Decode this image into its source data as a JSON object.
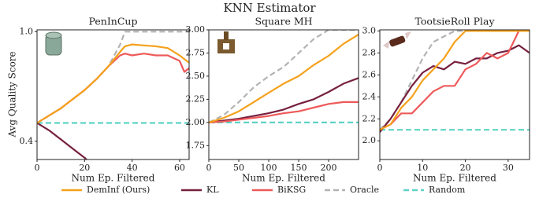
{
  "title": "KNN Estimator",
  "y_label": "Avg Quality Score",
  "chart_data": [
    {
      "type": "line",
      "title": "PenInCup",
      "x_label": "Num Ep. Filtered",
      "x": [
        0,
        5,
        10,
        15,
        20,
        25,
        30,
        35,
        37,
        40,
        45,
        50,
        55,
        60,
        62,
        64
      ],
      "xlim": [
        0,
        64
      ],
      "xticks": [
        0,
        20,
        40,
        60
      ],
      "ylim": [
        0.3,
        1.01
      ],
      "yticks": [
        0.4,
        {
          "value": 1,
          "label": "1.0"
        }
      ],
      "series": [
        {
          "name": "DemInf (Ours)",
          "color": "#f5a11c",
          "values": [
            0.5,
            0.54,
            0.58,
            0.63,
            0.68,
            0.74,
            0.81,
            0.89,
            0.92,
            0.93,
            0.925,
            0.92,
            0.91,
            0.87,
            0.85,
            0.83
          ]
        },
        {
          "name": "KL",
          "color": "#76203f",
          "values": [
            0.5,
            0.46,
            0.41,
            0.36,
            0.31,
            0.25,
            null,
            null,
            null,
            null,
            null,
            null,
            null,
            null,
            null,
            null
          ]
        },
        {
          "name": "BiKSG",
          "color": "#ee5a5a",
          "values": [
            0.5,
            0.54,
            0.58,
            0.63,
            0.68,
            0.74,
            0.81,
            0.87,
            0.88,
            0.87,
            0.88,
            0.87,
            0.87,
            0.84,
            0.78,
            0.8
          ]
        },
        {
          "name": "Oracle",
          "color": "#b3b3b3",
          "dash": true,
          "values": [
            0.5,
            0.54,
            0.58,
            0.63,
            0.68,
            0.74,
            0.81,
            0.93,
            1,
            1,
            1,
            1,
            1,
            1,
            1,
            1
          ]
        },
        {
          "name": "Random",
          "color": "#5ed3c6",
          "dash": true,
          "values": [
            0.5,
            0.5,
            0.5,
            0.5,
            0.5,
            0.5,
            0.5,
            0.5,
            0.5,
            0.5,
            0.5,
            0.5,
            0.5,
            0.5,
            0.5,
            0.5
          ]
        }
      ]
    },
    {
      "type": "line",
      "title": "Square MH",
      "x_label": "Num Ep. Filtered",
      "x": [
        0,
        25,
        50,
        75,
        100,
        125,
        150,
        175,
        200,
        225,
        250
      ],
      "xlim": [
        0,
        250
      ],
      "xticks": [
        0,
        50,
        100,
        150,
        200
      ],
      "ylim": [
        1.6,
        3.0
      ],
      "yticks": [
        1.75,
        {
          "value": 2,
          "label": "2.00"
        },
        2.25,
        {
          "value": 2.5,
          "label": "2.50"
        },
        2.75,
        {
          "value": 3,
          "label": "3.00"
        }
      ],
      "series": [
        {
          "color": "#f5a11c",
          "values": [
            2.0,
            2.05,
            2.12,
            2.22,
            2.32,
            2.42,
            2.5,
            2.62,
            2.72,
            2.85,
            2.95
          ]
        },
        {
          "color": "#76203f",
          "values": [
            2.0,
            2.02,
            2.04,
            2.07,
            2.1,
            2.14,
            2.2,
            2.25,
            2.33,
            2.42,
            2.48
          ]
        },
        {
          "color": "#ee5a5a",
          "values": [
            2.0,
            2.01,
            2.03,
            2.05,
            2.07,
            2.1,
            2.12,
            2.16,
            2.2,
            2.22,
            2.22
          ]
        },
        {
          "color": "#b3b3b3",
          "dash": true,
          "values": [
            2.0,
            2.08,
            2.22,
            2.38,
            2.5,
            2.6,
            2.75,
            2.9,
            3.0,
            3.0,
            3.0
          ]
        },
        {
          "color": "#5ed3c6",
          "dash": true,
          "values": [
            2.0,
            2.0,
            2.0,
            2.0,
            2.0,
            2.0,
            2.0,
            2.0,
            2.0,
            2.0,
            2.0
          ]
        }
      ]
    },
    {
      "type": "line",
      "title": "TootsieRoll Play",
      "x_label": "Num Ep. Filtered",
      "x": [
        0,
        2.5,
        5,
        7.5,
        10,
        12.5,
        15,
        17.5,
        20,
        22.5,
        25,
        27.5,
        30,
        32.5,
        35
      ],
      "xlim": [
        0,
        35
      ],
      "xticks": [
        0,
        10,
        20,
        30
      ],
      "ylim": [
        1.83,
        3.01
      ],
      "yticks": [
        {
          "value": 2,
          "label": "2.0"
        },
        2.2,
        2.4,
        2.6,
        2.8,
        {
          "value": 3,
          "label": "3.0"
        }
      ],
      "series": [
        {
          "color": "#f5a11c",
          "values": [
            2.1,
            2.15,
            2.3,
            2.4,
            2.55,
            2.65,
            2.75,
            2.9,
            3.0,
            3.0,
            3.0,
            3.0,
            3.0,
            3.0,
            3.0
          ]
        },
        {
          "color": "#76203f",
          "values": [
            2.08,
            2.2,
            2.35,
            2.5,
            2.62,
            2.68,
            2.65,
            2.72,
            2.7,
            2.75,
            2.75,
            2.8,
            2.82,
            2.87,
            2.8
          ]
        },
        {
          "color": "#ee5a5a",
          "values": [
            2.1,
            2.15,
            2.25,
            2.25,
            2.35,
            2.45,
            2.5,
            2.5,
            2.65,
            2.7,
            2.8,
            2.75,
            2.8,
            3.0,
            3.0
          ]
        },
        {
          "color": "#b3b3b3",
          "dash": true,
          "values": [
            2.1,
            2.2,
            2.35,
            2.55,
            2.75,
            2.9,
            2.95,
            3.0,
            3.0,
            3.0,
            3.0,
            3.0,
            3.0,
            3.0,
            3.0
          ]
        },
        {
          "color": "#5ed3c6",
          "dash": true,
          "values": [
            2.1,
            2.1,
            2.1,
            2.1,
            2.1,
            2.1,
            2.1,
            2.1,
            2.1,
            2.1,
            2.1,
            2.1,
            2.1,
            2.1,
            2.1
          ]
        }
      ]
    }
  ]
}
